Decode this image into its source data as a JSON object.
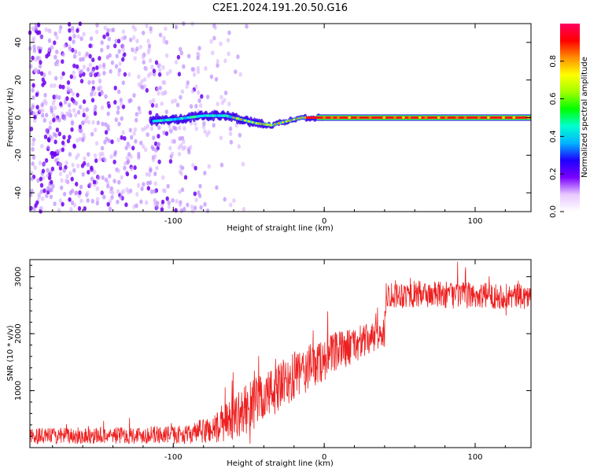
{
  "title": "C2E1.2024.191.20.50.G16",
  "chart_data": [
    {
      "type": "heatmap",
      "xlabel": "Height of straight line (km)",
      "ylabel": "Frequency (Hz)",
      "xlim": [
        -195,
        137
      ],
      "ylim": [
        -50,
        50
      ],
      "xticks": [
        -100,
        0,
        100
      ],
      "yticks": [
        -40,
        -20,
        0,
        20,
        40
      ],
      "colorbar": {
        "label": "Normalized spectral amplitude",
        "range": [
          0,
          1
        ],
        "ticks": [
          "0.0",
          "0.2",
          "0.4",
          "0.6",
          "0.8"
        ],
        "colors": [
          "#ffffff",
          "#e8c8ff",
          "#7a00ff",
          "#1e00ff",
          "#00b4ff",
          "#00ffd0",
          "#00ff00",
          "#a0ff00",
          "#ffff00",
          "#ff9000",
          "#ff0000",
          "#ff0060"
        ]
      },
      "noise_region_x": [
        -195,
        -50
      ],
      "signal_track": [
        {
          "x": -115,
          "f": -2
        },
        {
          "x": -100,
          "f": -1
        },
        {
          "x": -80,
          "f": 1
        },
        {
          "x": -65,
          "f": 1
        },
        {
          "x": -55,
          "f": -1
        },
        {
          "x": -45,
          "f": -3
        },
        {
          "x": -35,
          "f": -4
        },
        {
          "x": -25,
          "f": -2
        },
        {
          "x": -15,
          "f": 0
        },
        {
          "x": 0,
          "f": 0
        },
        {
          "x": 137,
          "f": 0
        }
      ]
    },
    {
      "type": "line",
      "xlabel": "Height of straight line (km)",
      "ylabel": "SNR (10 * v/v)",
      "xlim": [
        -195,
        137
      ],
      "ylim": [
        0,
        3300
      ],
      "xticks": [
        -100,
        0,
        100
      ],
      "yticks": [
        1000,
        2000,
        3000
      ],
      "color": "#ee2020",
      "trend": [
        {
          "x": -195,
          "mean": 200,
          "spread": 140
        },
        {
          "x": -90,
          "mean": 230,
          "spread": 160
        },
        {
          "x": -70,
          "mean": 350,
          "spread": 300
        },
        {
          "x": -50,
          "mean": 700,
          "spread": 450
        },
        {
          "x": -30,
          "mean": 1050,
          "spread": 450
        },
        {
          "x": -10,
          "mean": 1400,
          "spread": 420
        },
        {
          "x": 10,
          "mean": 1700,
          "spread": 350
        },
        {
          "x": 40,
          "mean": 2000,
          "spread": 250
        },
        {
          "x": 41,
          "mean": 2700,
          "spread": 250
        },
        {
          "x": 137,
          "mean": 2650,
          "spread": 220
        }
      ]
    }
  ]
}
